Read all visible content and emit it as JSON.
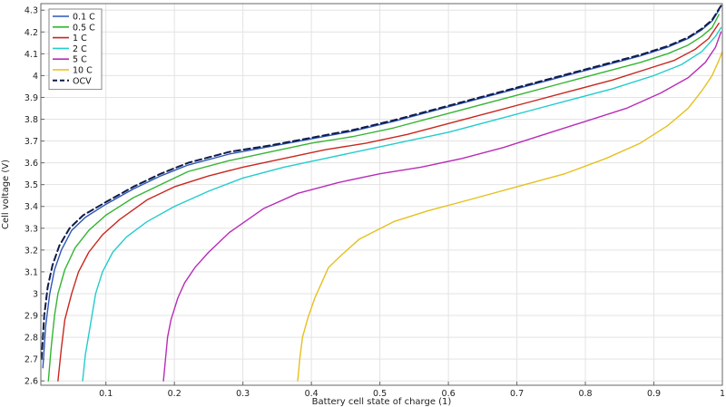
{
  "chart_data": {
    "type": "line",
    "title": "",
    "xlabel": "Battery cell state of charge (1)",
    "ylabel": "Cell voltage (V)",
    "xlim": [
      0.005,
      1.0
    ],
    "ylim": [
      2.58,
      4.33
    ],
    "x_ticks": [
      0.1,
      0.2,
      0.3,
      0.4,
      0.5,
      0.6,
      0.7,
      0.8,
      0.9,
      1
    ],
    "x_tick_labels": [
      "0.1",
      "0.2",
      "0.3",
      "0.4",
      "0.5",
      "0.6",
      "0.7",
      "0.8",
      "0.9",
      "1"
    ],
    "y_ticks": [
      2.6,
      2.7,
      2.8,
      2.9,
      3.0,
      3.1,
      3.2,
      3.3,
      3.4,
      3.5,
      3.6,
      3.7,
      3.8,
      3.9,
      4.0,
      4.1,
      4.2,
      4.3
    ],
    "y_tick_labels": [
      "2.6",
      "2.7",
      "2.8",
      "2.9",
      "3",
      "3.1",
      "3.2",
      "3.3",
      "3.4",
      "3.5",
      "3.6",
      "3.7",
      "3.8",
      "3.9",
      "4",
      "4.1",
      "4.2",
      "4.3"
    ],
    "grid": true,
    "legend": "top-left",
    "series": [
      {
        "name": "0.1 C",
        "color": "#2d56b8",
        "dash": false,
        "points": [
          [
            0.008,
            2.66
          ],
          [
            0.012,
            2.85
          ],
          [
            0.018,
            3.0
          ],
          [
            0.025,
            3.11
          ],
          [
            0.035,
            3.2
          ],
          [
            0.05,
            3.29
          ],
          [
            0.07,
            3.35
          ],
          [
            0.1,
            3.41
          ],
          [
            0.14,
            3.48
          ],
          [
            0.18,
            3.54
          ],
          [
            0.22,
            3.59
          ],
          [
            0.28,
            3.64
          ],
          [
            0.34,
            3.675
          ],
          [
            0.4,
            3.71
          ],
          [
            0.46,
            3.745
          ],
          [
            0.52,
            3.79
          ],
          [
            0.58,
            3.84
          ],
          [
            0.64,
            3.89
          ],
          [
            0.7,
            3.94
          ],
          [
            0.76,
            3.99
          ],
          [
            0.82,
            4.04
          ],
          [
            0.88,
            4.09
          ],
          [
            0.92,
            4.13
          ],
          [
            0.95,
            4.17
          ],
          [
            0.97,
            4.21
          ],
          [
            0.985,
            4.25
          ],
          [
            0.995,
            4.3
          ]
        ]
      },
      {
        "name": "0.5 C",
        "color": "#33b533",
        "dash": false,
        "points": [
          [
            0.016,
            2.6
          ],
          [
            0.02,
            2.75
          ],
          [
            0.025,
            2.9
          ],
          [
            0.03,
            3.0
          ],
          [
            0.04,
            3.11
          ],
          [
            0.055,
            3.21
          ],
          [
            0.075,
            3.29
          ],
          [
            0.1,
            3.36
          ],
          [
            0.14,
            3.44
          ],
          [
            0.18,
            3.5
          ],
          [
            0.22,
            3.56
          ],
          [
            0.28,
            3.61
          ],
          [
            0.34,
            3.65
          ],
          [
            0.4,
            3.69
          ],
          [
            0.46,
            3.72
          ],
          [
            0.52,
            3.76
          ],
          [
            0.58,
            3.81
          ],
          [
            0.64,
            3.86
          ],
          [
            0.7,
            3.91
          ],
          [
            0.76,
            3.96
          ],
          [
            0.82,
            4.01
          ],
          [
            0.88,
            4.06
          ],
          [
            0.92,
            4.1
          ],
          [
            0.95,
            4.14
          ],
          [
            0.97,
            4.18
          ],
          [
            0.985,
            4.22
          ],
          [
            0.995,
            4.28
          ]
        ]
      },
      {
        "name": "1 C",
        "color": "#c8271e",
        "dash": false,
        "points": [
          [
            0.03,
            2.6
          ],
          [
            0.035,
            2.75
          ],
          [
            0.04,
            2.88
          ],
          [
            0.05,
            3.0
          ],
          [
            0.06,
            3.1
          ],
          [
            0.075,
            3.19
          ],
          [
            0.095,
            3.27
          ],
          [
            0.12,
            3.34
          ],
          [
            0.16,
            3.43
          ],
          [
            0.2,
            3.49
          ],
          [
            0.25,
            3.54
          ],
          [
            0.3,
            3.58
          ],
          [
            0.36,
            3.62
          ],
          [
            0.42,
            3.66
          ],
          [
            0.48,
            3.69
          ],
          [
            0.54,
            3.73
          ],
          [
            0.6,
            3.78
          ],
          [
            0.66,
            3.83
          ],
          [
            0.72,
            3.88
          ],
          [
            0.78,
            3.93
          ],
          [
            0.84,
            3.98
          ],
          [
            0.9,
            4.04
          ],
          [
            0.93,
            4.07
          ],
          [
            0.96,
            4.12
          ],
          [
            0.98,
            4.17
          ],
          [
            0.995,
            4.24
          ]
        ]
      },
      {
        "name": "2 C",
        "color": "#22cccc",
        "dash": false,
        "points": [
          [
            0.066,
            2.6
          ],
          [
            0.07,
            2.72
          ],
          [
            0.077,
            2.85
          ],
          [
            0.085,
            3.0
          ],
          [
            0.095,
            3.1
          ],
          [
            0.11,
            3.19
          ],
          [
            0.13,
            3.26
          ],
          [
            0.16,
            3.33
          ],
          [
            0.2,
            3.4
          ],
          [
            0.25,
            3.47
          ],
          [
            0.3,
            3.53
          ],
          [
            0.36,
            3.58
          ],
          [
            0.42,
            3.62
          ],
          [
            0.48,
            3.66
          ],
          [
            0.54,
            3.7
          ],
          [
            0.6,
            3.74
          ],
          [
            0.66,
            3.79
          ],
          [
            0.72,
            3.84
          ],
          [
            0.78,
            3.89
          ],
          [
            0.84,
            3.94
          ],
          [
            0.9,
            4.0
          ],
          [
            0.94,
            4.05
          ],
          [
            0.97,
            4.11
          ],
          [
            0.99,
            4.18
          ],
          [
            0.998,
            4.22
          ]
        ]
      },
      {
        "name": "5 C",
        "color": "#b82cb8",
        "dash": false,
        "points": [
          [
            0.184,
            2.6
          ],
          [
            0.187,
            2.7
          ],
          [
            0.19,
            2.8
          ],
          [
            0.195,
            2.88
          ],
          [
            0.205,
            2.98
          ],
          [
            0.215,
            3.05
          ],
          [
            0.23,
            3.12
          ],
          [
            0.25,
            3.19
          ],
          [
            0.28,
            3.28
          ],
          [
            0.33,
            3.39
          ],
          [
            0.38,
            3.46
          ],
          [
            0.44,
            3.51
          ],
          [
            0.5,
            3.55
          ],
          [
            0.56,
            3.58
          ],
          [
            0.62,
            3.62
          ],
          [
            0.68,
            3.67
          ],
          [
            0.74,
            3.73
          ],
          [
            0.8,
            3.79
          ],
          [
            0.86,
            3.85
          ],
          [
            0.91,
            3.92
          ],
          [
            0.95,
            3.99
          ],
          [
            0.975,
            4.06
          ],
          [
            0.99,
            4.13
          ],
          [
            0.998,
            4.2
          ]
        ]
      },
      {
        "name": "10 C",
        "color": "#e6c01e",
        "dash": false,
        "points": [
          [
            0.38,
            2.6
          ],
          [
            0.383,
            2.7
          ],
          [
            0.387,
            2.8
          ],
          [
            0.395,
            2.89
          ],
          [
            0.405,
            2.98
          ],
          [
            0.415,
            3.05
          ],
          [
            0.425,
            3.12
          ],
          [
            0.445,
            3.18
          ],
          [
            0.47,
            3.25
          ],
          [
            0.52,
            3.33
          ],
          [
            0.57,
            3.38
          ],
          [
            0.63,
            3.43
          ],
          [
            0.7,
            3.49
          ],
          [
            0.77,
            3.55
          ],
          [
            0.83,
            3.62
          ],
          [
            0.88,
            3.69
          ],
          [
            0.92,
            3.77
          ],
          [
            0.95,
            3.85
          ],
          [
            0.97,
            3.93
          ],
          [
            0.985,
            4.0
          ],
          [
            0.995,
            4.07
          ],
          [
            1.0,
            4.11
          ]
        ]
      },
      {
        "name": "OCV",
        "color": "#111c4a",
        "dash": true,
        "points": [
          [
            0.006,
            2.7
          ],
          [
            0.01,
            2.9
          ],
          [
            0.015,
            3.03
          ],
          [
            0.022,
            3.13
          ],
          [
            0.032,
            3.22
          ],
          [
            0.047,
            3.3
          ],
          [
            0.067,
            3.36
          ],
          [
            0.1,
            3.42
          ],
          [
            0.14,
            3.49
          ],
          [
            0.18,
            3.55
          ],
          [
            0.22,
            3.6
          ],
          [
            0.28,
            3.65
          ],
          [
            0.34,
            3.68
          ],
          [
            0.4,
            3.715
          ],
          [
            0.46,
            3.75
          ],
          [
            0.52,
            3.795
          ],
          [
            0.58,
            3.845
          ],
          [
            0.64,
            3.895
          ],
          [
            0.7,
            3.945
          ],
          [
            0.76,
            3.995
          ],
          [
            0.82,
            4.045
          ],
          [
            0.88,
            4.095
          ],
          [
            0.92,
            4.135
          ],
          [
            0.95,
            4.175
          ],
          [
            0.97,
            4.215
          ],
          [
            0.985,
            4.255
          ],
          [
            0.998,
            4.32
          ]
        ]
      }
    ]
  }
}
